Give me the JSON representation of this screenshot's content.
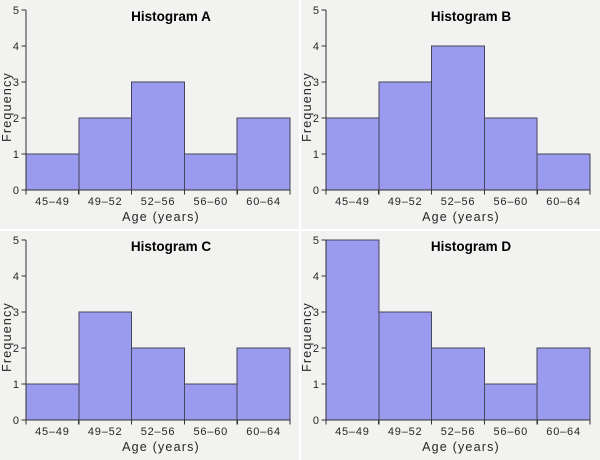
{
  "page": {
    "background_color": "#F2F2F0",
    "divider_color": "#FFFFFF"
  },
  "chart_style": {
    "bar_fill": "#9A9AEE",
    "bar_border": "#46465A",
    "axis_color": "#333333",
    "tick_color": "#333333",
    "text_color": "#262626",
    "title_color": "#000000"
  },
  "chart_data": [
    {
      "type": "bar",
      "subtype": "histogram",
      "title": "Histogram A",
      "categories": [
        "45–49",
        "49–52",
        "52–56",
        "56–60",
        "60–64"
      ],
      "values": [
        1,
        2,
        3,
        1,
        2
      ],
      "xlabel": "Age (years)",
      "ylabel": "Frequency",
      "ylim": [
        0,
        5
      ],
      "yticks": [
        0,
        1,
        2,
        3,
        4,
        5
      ],
      "grid": false,
      "legend": false
    },
    {
      "type": "bar",
      "subtype": "histogram",
      "title": "Histogram B",
      "categories": [
        "45–49",
        "49–52",
        "52–56",
        "56–60",
        "60–64"
      ],
      "values": [
        2,
        3,
        4,
        2,
        1
      ],
      "xlabel": "Age (years)",
      "ylabel": "Frequency",
      "ylim": [
        0,
        5
      ],
      "yticks": [
        0,
        1,
        2,
        3,
        4,
        5
      ],
      "grid": false,
      "legend": false
    },
    {
      "type": "bar",
      "subtype": "histogram",
      "title": "Histogram C",
      "categories": [
        "45–49",
        "49–52",
        "52–56",
        "56–60",
        "60–64"
      ],
      "values": [
        1,
        3,
        2,
        1,
        2
      ],
      "xlabel": "Age (years)",
      "ylabel": "Frequency",
      "ylim": [
        0,
        5
      ],
      "yticks": [
        0,
        1,
        2,
        3,
        4,
        5
      ],
      "grid": false,
      "legend": false
    },
    {
      "type": "bar",
      "subtype": "histogram",
      "title": "Histogram D",
      "categories": [
        "45–49",
        "49–52",
        "52–56",
        "56–60",
        "60–64"
      ],
      "values": [
        5,
        3,
        2,
        1,
        2
      ],
      "xlabel": "Age (years)",
      "ylabel": "Frequency",
      "ylim": [
        0,
        5
      ],
      "yticks": [
        0,
        1,
        2,
        3,
        4,
        5
      ],
      "grid": false,
      "legend": false
    }
  ]
}
